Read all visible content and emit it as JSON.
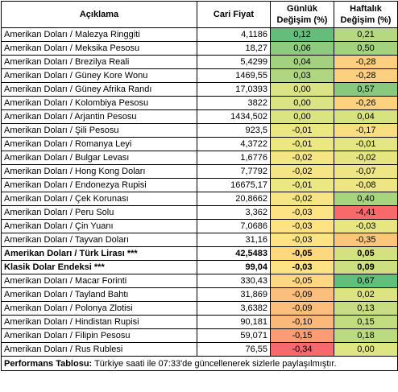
{
  "headers": {
    "name": "Açıklama",
    "price": "Cari Fiyat",
    "daily_line1": "Günlük",
    "daily_line2": "Değişim (%)",
    "weekly_line1": "Haftalık",
    "weekly_line2": "Değişim (%)"
  },
  "rows": [
    {
      "name": "Amerikan Doları / Malezya Ringgiti",
      "price": "4,1186",
      "daily": "0,12",
      "weekly": "0,21",
      "daily_color": "#63be7b",
      "weekly_color": "#b5d880"
    },
    {
      "name": "Amerikan Doları / Meksika Pesosu",
      "price": "18,27",
      "daily": "0,06",
      "weekly": "0,50",
      "daily_color": "#8fcb7e",
      "weekly_color": "#a4d37f"
    },
    {
      "name": "Amerikan Doları / Brezilya Reali",
      "price": "5,4299",
      "daily": "0,04",
      "weekly": "-0,28",
      "daily_color": "#a2d17f",
      "weekly_color": "#fcd07e"
    },
    {
      "name": "Amerikan Doları / Güney Kore Wonu",
      "price": "1469,55",
      "daily": "0,03",
      "weekly": "-0,28",
      "daily_color": "#b0d680",
      "weekly_color": "#fcd07e"
    },
    {
      "name": "Amerikan Doları / Güney Afrika Randı",
      "price": "17,0393",
      "daily": "0,00",
      "weekly": "0,57",
      "daily_color": "#dbe482",
      "weekly_color": "#89c97e"
    },
    {
      "name": "Amerikan Doları / Kolombiya Pesosu",
      "price": "3822",
      "daily": "0,00",
      "weekly": "-0,26",
      "daily_color": "#dbe482",
      "weekly_color": "#fcd27f"
    },
    {
      "name": "Amerikan Doları / Arjantin Pesosu",
      "price": "1434,502",
      "daily": "0,00",
      "weekly": "0,04",
      "daily_color": "#dbe482",
      "weekly_color": "#d7e381"
    },
    {
      "name": "Amerikan Doları / Şili Pesosu",
      "price": "923,5",
      "daily": "-0,01",
      "weekly": "-0,17",
      "daily_color": "#ebe783",
      "weekly_color": "#f7df81"
    },
    {
      "name": "Amerikan Doları / Romanya Leyi",
      "price": "4,3722",
      "daily": "-0,01",
      "weekly": "-0,01",
      "daily_color": "#ebe783",
      "weekly_color": "#e3e683"
    },
    {
      "name": "Amerikan Doları / Bulgar Levası",
      "price": "1,6776",
      "daily": "-0,02",
      "weekly": "-0,02",
      "daily_color": "#f5e683",
      "weekly_color": "#e5e682"
    },
    {
      "name": "Amerikan Doları / Hong Kong Doları",
      "price": "7,7792",
      "daily": "-0,02",
      "weekly": "-0,07",
      "daily_color": "#f5e683",
      "weekly_color": "#ede683"
    },
    {
      "name": "Amerikan Doları / Endonezya Rupisi",
      "price": "16675,17",
      "daily": "-0,01",
      "weekly": "-0,08",
      "daily_color": "#ebe783",
      "weekly_color": "#eee683"
    },
    {
      "name": "Amerikan Doları / Çek Korunası",
      "price": "20,8662",
      "daily": "-0,02",
      "weekly": "0,40",
      "daily_color": "#f5e683",
      "weekly_color": "#a7d47f"
    },
    {
      "name": "Amerikan Doları / Peru Solu",
      "price": "3,362",
      "daily": "-0,03",
      "weekly": "-4,41",
      "daily_color": "#fde383",
      "weekly_color": "#f8696b"
    },
    {
      "name": "Amerikan Doları / Çin Yuanı",
      "price": "7,0686",
      "daily": "-0,03",
      "weekly": "-0,03",
      "daily_color": "#fde383",
      "weekly_color": "#e7e682"
    },
    {
      "name": "Amerikan Doları / Tayvan Doları",
      "price": "31,16",
      "daily": "-0,03",
      "weekly": "-0,35",
      "daily_color": "#fde383",
      "weekly_color": "#fbc57c"
    },
    {
      "name": "Amerikan Doları / Türk Lirası ***",
      "price": "42,5483",
      "daily": "-0,05",
      "weekly": "0,05",
      "daily_color": "#fdd880",
      "weekly_color": "#d3e281",
      "bold": true
    },
    {
      "name": "Klasik Dolar Endeksi ***",
      "price": "99,04",
      "daily": "-0,03",
      "weekly": "0,09",
      "daily_color": "#fde383",
      "weekly_color": "#cde081",
      "bold": true
    },
    {
      "name": "Amerikan Doları / Macar Forinti",
      "price": "330,43",
      "daily": "-0,05",
      "weekly": "0,67",
      "daily_color": "#fdd880",
      "weekly_color": "#63be7b"
    },
    {
      "name": "Amerikan Doları / Tayland Bahtı",
      "price": "31,869",
      "daily": "-0,09",
      "weekly": "0,02",
      "daily_color": "#fcbf7b",
      "weekly_color": "#dbe481"
    },
    {
      "name": "Amerikan Doları / Polonya Zlotisi",
      "price": "3,6382",
      "daily": "-0,09",
      "weekly": "0,13",
      "daily_color": "#fcbf7b",
      "weekly_color": "#c6de81"
    },
    {
      "name": "Amerikan Doları / Hindistan Rupisi",
      "price": "90,181",
      "daily": "-0,10",
      "weekly": "0,15",
      "daily_color": "#fbb979",
      "weekly_color": "#c2dc80"
    },
    {
      "name": "Amerikan Doları / Filipin Pesosu",
      "price": "59,071",
      "daily": "-0,15",
      "weekly": "0,18",
      "daily_color": "#fa9d75",
      "weekly_color": "#bcda80"
    },
    {
      "name": "Amerikan Doları / Rus Rublesi",
      "price": "76,55",
      "daily": "-0,34",
      "weekly": "0,00",
      "daily_color": "#f8696b",
      "weekly_color": "#dee583"
    }
  ],
  "footer": {
    "label": "Performans Tablosu:",
    "text": " Türkiye saati ile 07:33'de güncellenerek sizlerle paylaşılmıştır."
  }
}
